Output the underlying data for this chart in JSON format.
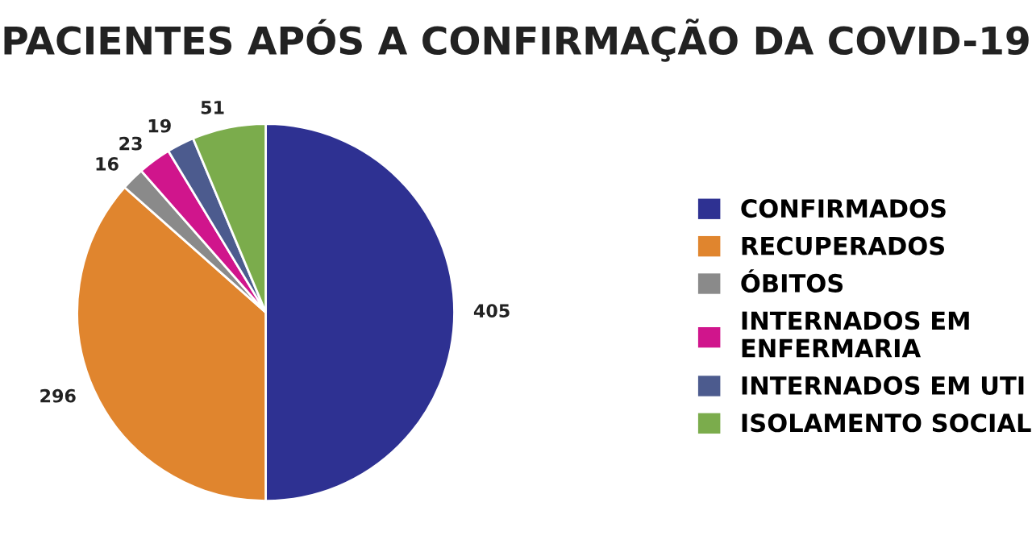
{
  "chart_data": {
    "type": "pie",
    "title": "PACIENTES APÓS A CONFIRMAÇÃO DA COVID-19",
    "categories": [
      "CONFIRMADOS",
      "RECUPERADOS",
      "ÓBITOS",
      "INTERNADOS EM\nENFERMARIA",
      "INTERNADOS EM UTI",
      "ISOLAMENTO SOCIAL"
    ],
    "values": [
      405,
      296,
      16,
      23,
      19,
      51
    ],
    "colors": [
      "#2e3192",
      "#e0852e",
      "#8a8a8a",
      "#d0158c",
      "#4c5b8e",
      "#7bac4c"
    ],
    "data_labels": true,
    "legend": "right"
  }
}
